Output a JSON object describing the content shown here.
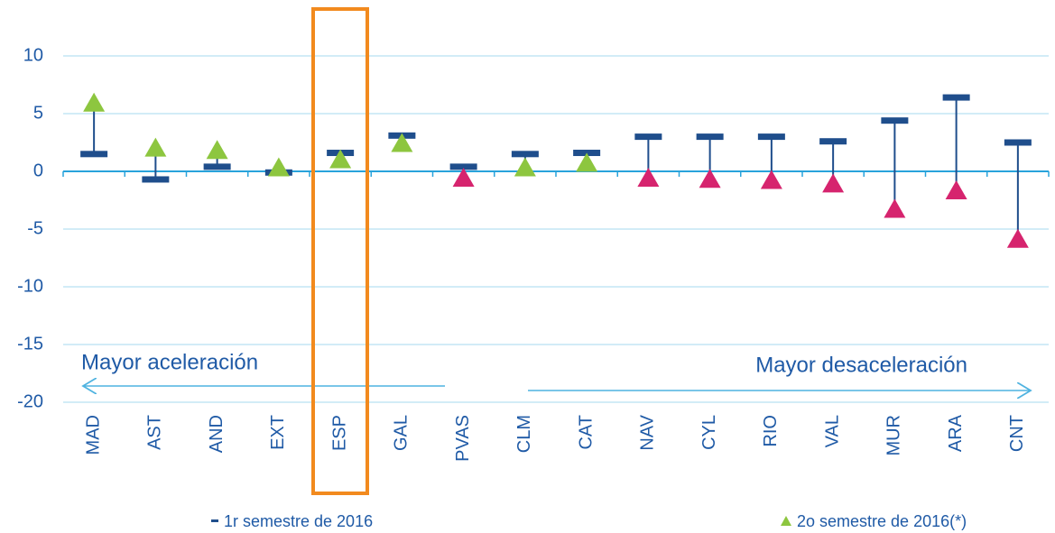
{
  "chart_data": {
    "type": "range-markers",
    "categories": [
      "MAD",
      "AST",
      "AND",
      "EXT",
      "ESP",
      "GAL",
      "PVAS",
      "CLM",
      "CAT",
      "NAV",
      "CYL",
      "RIO",
      "VAL",
      "MUR",
      "ARA",
      "CNT"
    ],
    "series": [
      {
        "name": "1r semestre de 2016",
        "marker": "dash",
        "color": "#1f4e8c",
        "values": [
          1.5,
          -0.7,
          0.4,
          -0.1,
          1.6,
          3.1,
          0.4,
          1.5,
          1.6,
          3.0,
          3.0,
          3.0,
          2.6,
          4.4,
          6.4,
          2.5
        ]
      },
      {
        "name": "2o semestre de 2016(*)",
        "marker": "triangle",
        "color": "#8dc63f",
        "colors": [
          "#8dc63f",
          "#8dc63f",
          "#8dc63f",
          "#8dc63f",
          "#8dc63f",
          "#8dc63f",
          "#d6246e",
          "#8dc63f",
          "#8dc63f",
          "#d6246e",
          "#d6246e",
          "#d6246e",
          "#d6246e",
          "#d6246e",
          "#d6246e",
          "#d6246e"
        ],
        "values": [
          5.8,
          1.9,
          1.7,
          0.2,
          0.9,
          2.3,
          -0.7,
          0.2,
          0.6,
          -0.7,
          -0.8,
          -0.9,
          -1.2,
          -3.4,
          -1.8,
          -6.0
        ]
      }
    ],
    "annotations": [
      "Mayor aceleración",
      "Mayor desaceleración"
    ],
    "ylim": [
      -20,
      12
    ],
    "yticks": [
      -20,
      -15,
      -10,
      -5,
      0,
      5,
      10
    ],
    "grid": true
  }
}
